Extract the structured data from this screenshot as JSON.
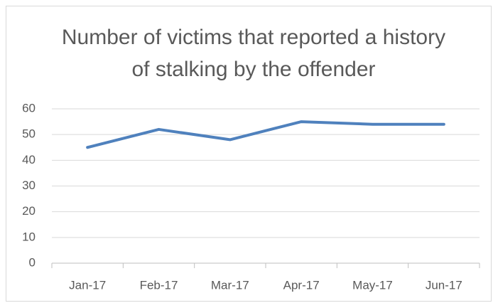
{
  "chart_data": {
    "type": "line",
    "title": "Number of victims that reported a history of stalking by the offender",
    "categories": [
      "Jan-17",
      "Feb-17",
      "Mar-17",
      "Apr-17",
      "May-17",
      "Jun-17"
    ],
    "values": [
      45,
      52,
      48,
      55,
      54,
      54
    ],
    "color": "#4f81bd",
    "ylim": [
      0,
      60
    ],
    "yticks": [
      0,
      10,
      20,
      30,
      40,
      50,
      60
    ],
    "grid": true
  }
}
